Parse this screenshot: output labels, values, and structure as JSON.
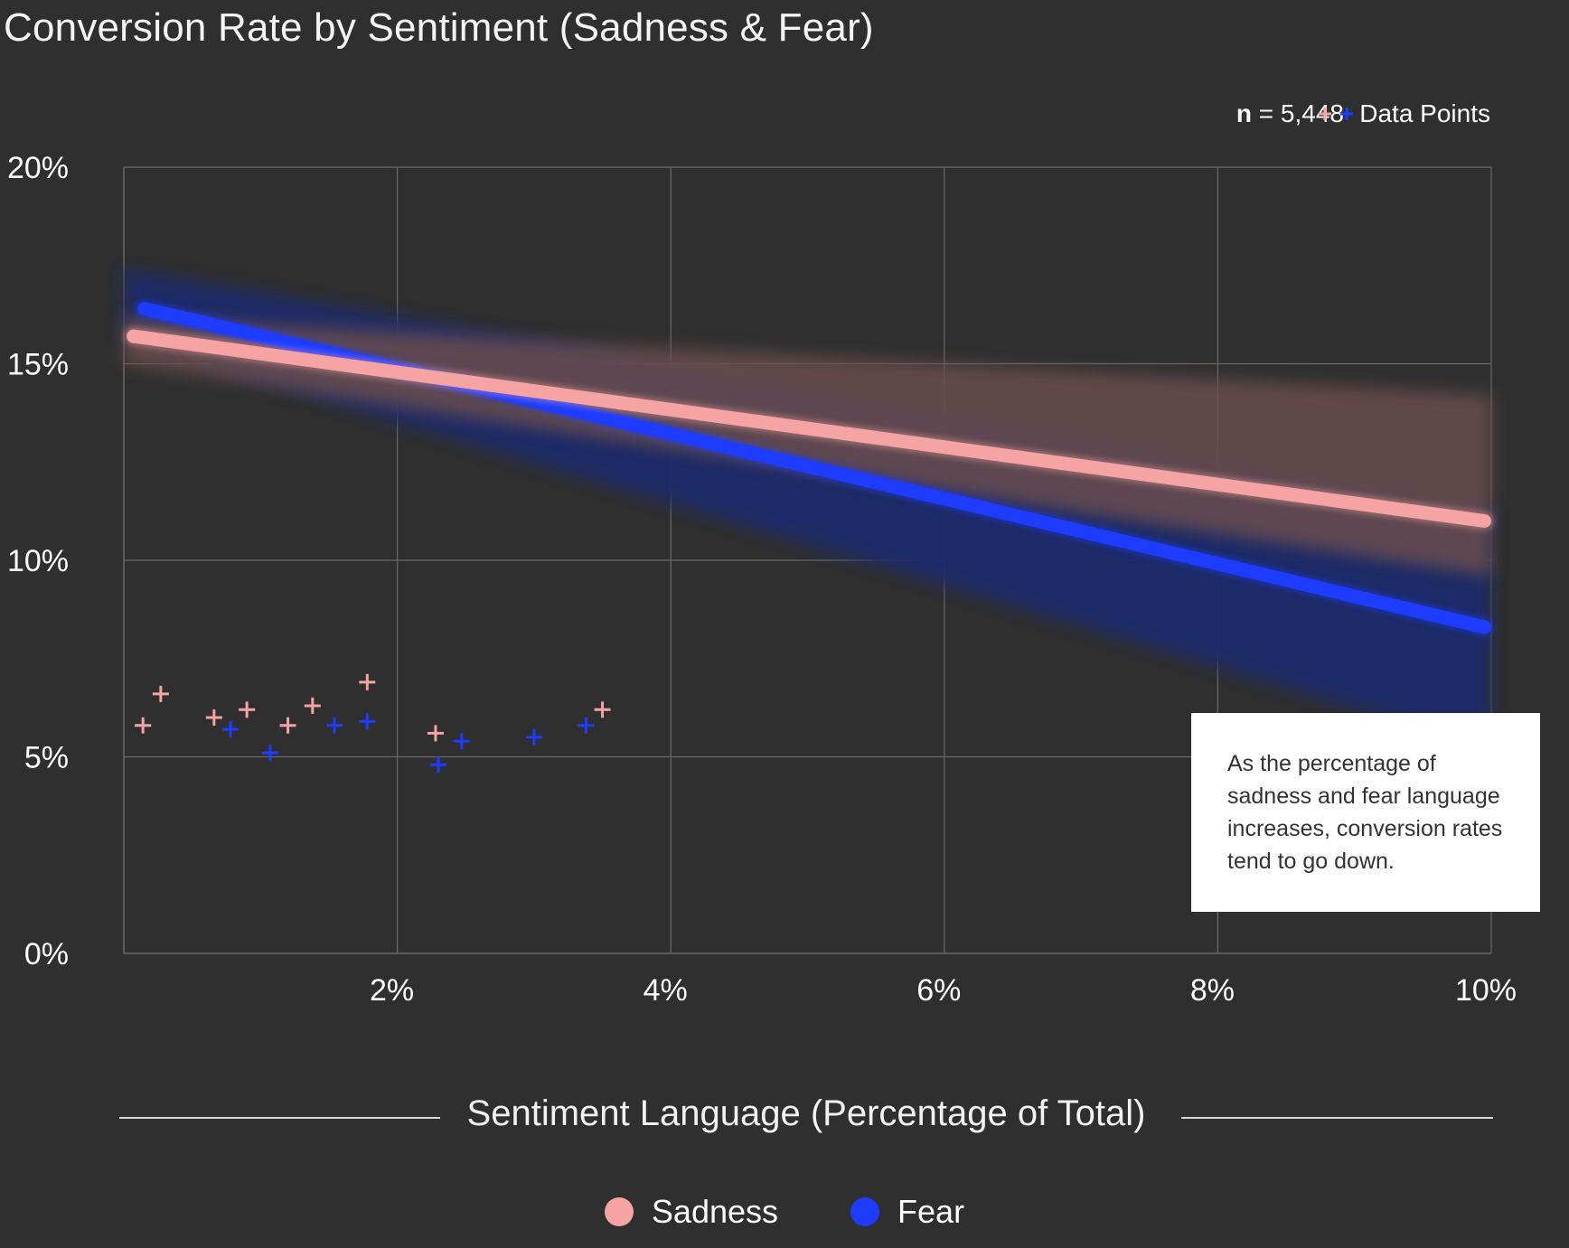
{
  "header": {
    "title": "Conversion Rate by Sentiment (Sadness & Fear)",
    "n_label": "n",
    "n_value": "= 5,448",
    "points_legend_symbol": "+",
    "points_legend_label": "Data Points"
  },
  "annotation": {
    "text": "As the percentage of sadness and fear language increases, conversion rates tend to go down."
  },
  "colors": {
    "background": "#2f2f2f",
    "sadness": "#f5a3a3",
    "fear": "#1e3cff",
    "sadness_band": "#6b4e4e",
    "fear_band": "#1f2a6b",
    "grid": "#6a6a6a"
  },
  "chart_data": {
    "type": "scatter",
    "xlabel": "Sentiment Language (Percentage of Total)",
    "ylabel": "",
    "xlim": [
      0,
      10
    ],
    "ylim": [
      0,
      20
    ],
    "x_ticks": [
      {
        "value": 2,
        "label": "2%"
      },
      {
        "value": 4,
        "label": "4%"
      },
      {
        "value": 6,
        "label": "6%"
      },
      {
        "value": 8,
        "label": "8%"
      },
      {
        "value": 10,
        "label": "10%"
      }
    ],
    "y_ticks": [
      {
        "value": 0,
        "label": "0%"
      },
      {
        "value": 5,
        "label": "5%"
      },
      {
        "value": 10,
        "label": "10%"
      },
      {
        "value": 15,
        "label": "15%"
      },
      {
        "value": 20,
        "label": "20%"
      }
    ],
    "grid": true,
    "series": [
      {
        "name": "Sadness",
        "color": "#f5a3a3",
        "points": [
          {
            "x": 0.14,
            "y": 5.8
          },
          {
            "x": 0.27,
            "y": 6.6
          },
          {
            "x": 0.66,
            "y": 6.0
          },
          {
            "x": 0.9,
            "y": 6.2
          },
          {
            "x": 1.2,
            "y": 5.8
          },
          {
            "x": 1.38,
            "y": 6.3
          },
          {
            "x": 1.78,
            "y": 6.9
          },
          {
            "x": 2.28,
            "y": 5.6
          },
          {
            "x": 3.5,
            "y": 6.2
          }
        ],
        "trend": {
          "x": [
            0.07,
            9.95
          ],
          "y": [
            15.7,
            11.0
          ]
        },
        "band": {
          "x": [
            0,
            10
          ],
          "lower": [
            15.0,
            9.6
          ],
          "upper": [
            16.2,
            14.2
          ]
        }
      },
      {
        "name": "Fear",
        "color": "#1e3cff",
        "points": [
          {
            "x": 0.78,
            "y": 5.7
          },
          {
            "x": 1.07,
            "y": 5.1
          },
          {
            "x": 1.54,
            "y": 5.8
          },
          {
            "x": 1.78,
            "y": 5.9
          },
          {
            "x": 2.3,
            "y": 4.8
          },
          {
            "x": 2.47,
            "y": 5.4
          },
          {
            "x": 3.0,
            "y": 5.5
          },
          {
            "x": 3.38,
            "y": 5.8
          }
        ],
        "trend": {
          "x": [
            0.15,
            9.95
          ],
          "y": [
            16.4,
            8.3
          ]
        },
        "band": {
          "x": [
            0,
            10
          ],
          "lower": [
            15.6,
            5.2
          ],
          "upper": [
            17.4,
            11.4
          ]
        }
      }
    ]
  },
  "legend": {
    "items": [
      {
        "label": "Sadness",
        "color": "#f5a3a3"
      },
      {
        "label": "Fear",
        "color": "#1e3cff"
      }
    ]
  }
}
